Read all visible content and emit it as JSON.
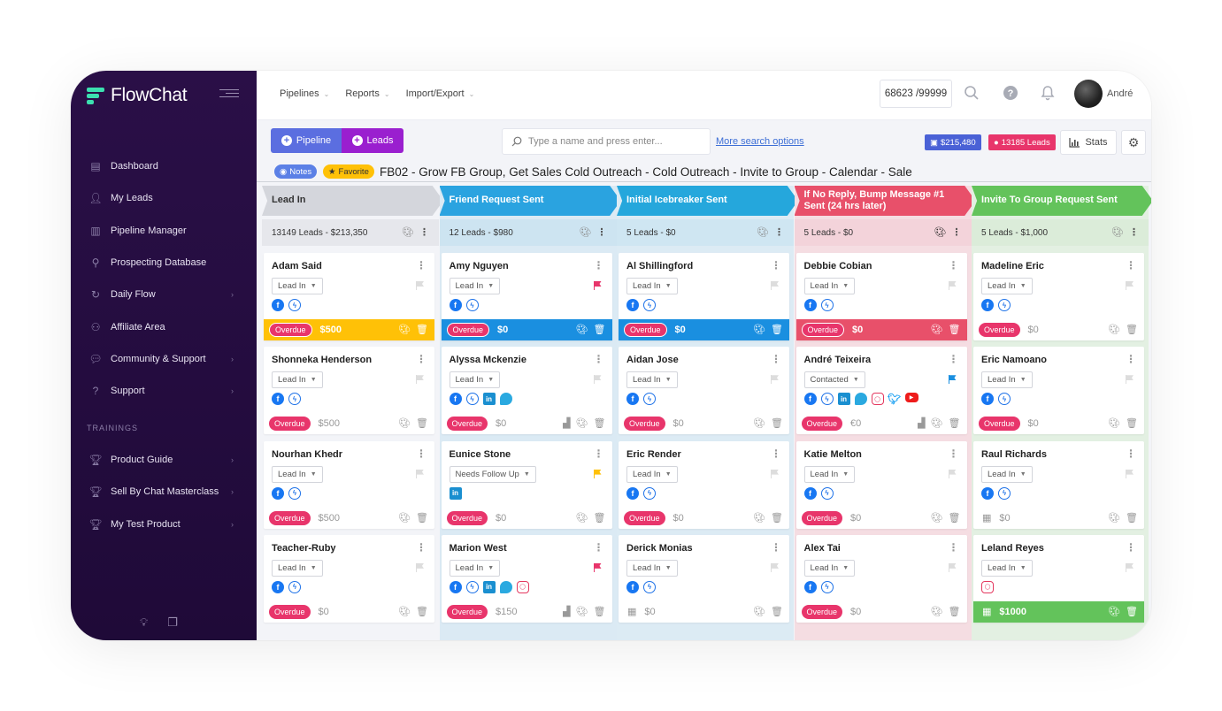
{
  "app": {
    "name": "FlowChat"
  },
  "sidebar": {
    "items": [
      {
        "label": "Dashboard",
        "icon": "dashboard-icon",
        "chev": false
      },
      {
        "label": "My Leads",
        "icon": "users-icon",
        "chev": false
      },
      {
        "label": "Pipeline Manager",
        "icon": "columns-icon",
        "chev": false
      },
      {
        "label": "Prospecting Database",
        "icon": "search-icon",
        "chev": false
      },
      {
        "label": "Daily Flow",
        "icon": "refresh-icon",
        "chev": true
      },
      {
        "label": "Affiliate Area",
        "icon": "network-icon",
        "chev": false
      },
      {
        "label": "Community & Support",
        "icon": "chat-icon",
        "chev": true
      },
      {
        "label": "Support",
        "icon": "help-icon",
        "chev": true
      }
    ],
    "section_label": "TRAININGS",
    "trainings": [
      {
        "label": "Product Guide"
      },
      {
        "label": "Sell By Chat Masterclass"
      },
      {
        "label": "My Test Product"
      }
    ]
  },
  "topbar": {
    "menu": [
      "Pipelines",
      "Reports",
      "Import/Export"
    ],
    "counter": "68623 /99999",
    "user": "André"
  },
  "toolbar": {
    "pipeline_label": "Pipeline",
    "leads_label": "Leads",
    "search_placeholder": "Type a name and press enter...",
    "more_search": "More search options",
    "money_badge": "$215,480",
    "leads_badge": "13185 Leads",
    "stats_label": "Stats"
  },
  "pipeline": {
    "notes_label": "Notes",
    "favorite_label": "Favorite",
    "title": "FB02 - Grow FB Group, Get Sales Cold Outreach - Cold Outreach - Invite to Group - Calendar - Sale"
  },
  "colors": {
    "overdue": "#e8356b",
    "accent": "#9a1fcf",
    "brand": "#3ce0b0"
  },
  "columns": [
    {
      "title": "Lead In",
      "summary": "13149 Leads - $213,350",
      "head_bg": "#d4d6dc",
      "head_fg": "#333333",
      "sub_bg": "#e6e7ec",
      "body_bg": "#f3f4f8",
      "accent": "#ffc107",
      "cards": [
        {
          "name": "Adam Said",
          "status": "Lead In",
          "icons": [
            "fb",
            "ms"
          ],
          "overdue": "Overdue",
          "amount": "$500",
          "flag": "#dddddd",
          "full": true,
          "note": false,
          "cal": false
        },
        {
          "name": "Shonneka Henderson",
          "status": "Lead In",
          "icons": [
            "fb",
            "ms"
          ],
          "overdue": "Overdue",
          "amount": "$500",
          "flag": "#dddddd",
          "full": false,
          "note": false,
          "cal": false
        },
        {
          "name": "Nourhan Khedr",
          "status": "Lead In",
          "icons": [
            "fb",
            "ms"
          ],
          "overdue": "Overdue",
          "amount": "$500",
          "flag": "#dddddd",
          "full": false,
          "note": false,
          "cal": false
        },
        {
          "name": "Teacher-Ruby",
          "status": "Lead In",
          "icons": [
            "fb",
            "ms"
          ],
          "overdue": "Overdue",
          "amount": "$0",
          "flag": "#dddddd",
          "full": false,
          "note": false,
          "cal": false
        }
      ]
    },
    {
      "title": "Friend Request Sent",
      "summary": "12 Leads - $980",
      "head_bg": "#2aa3e0",
      "head_fg": "#ffffff",
      "sub_bg": "#cde4f1",
      "body_bg": "#dbeaf4",
      "accent": "#1a8fe0",
      "cards": [
        {
          "name": "Amy Nguyen",
          "status": "Lead In",
          "icons": [
            "fb",
            "ms"
          ],
          "overdue": "Overdue",
          "amount": "$0",
          "flag": "#e8356b",
          "full": true,
          "note": false,
          "cal": false
        },
        {
          "name": "Alyssa Mckenzie",
          "status": "Lead In",
          "icons": [
            "fb",
            "ms",
            "li",
            "chat"
          ],
          "overdue": "Overdue",
          "amount": "$0",
          "flag": "#dddddd",
          "full": false,
          "note": true,
          "cal": false
        },
        {
          "name": "Eunice Stone",
          "status": "Needs Follow Up",
          "icons": [
            "li"
          ],
          "overdue": "Overdue",
          "amount": "$0",
          "flag": "#ffc107",
          "full": false,
          "note": false,
          "cal": false
        },
        {
          "name": "Marion West",
          "status": "Lead In",
          "icons": [
            "fb",
            "ms",
            "li",
            "chat",
            "ig"
          ],
          "overdue": "Overdue",
          "amount": "$150",
          "flag": "#e8356b",
          "full": false,
          "note": true,
          "cal": false
        }
      ]
    },
    {
      "title": "Initial Icebreaker Sent",
      "summary": "5 Leads - $0",
      "head_bg": "#25a7dc",
      "head_fg": "#ffffff",
      "sub_bg": "#cfe6f2",
      "body_bg": "#dcebf4",
      "accent": "#1a8fe0",
      "cards": [
        {
          "name": "Al Shillingford",
          "status": "Lead In",
          "icons": [
            "fb",
            "ms"
          ],
          "overdue": "Overdue",
          "amount": "$0",
          "flag": "#dddddd",
          "full": true,
          "note": false,
          "cal": false
        },
        {
          "name": "Aidan Jose",
          "status": "Lead In",
          "icons": [
            "fb",
            "ms"
          ],
          "overdue": "Overdue",
          "amount": "$0",
          "flag": "#dddddd",
          "full": false,
          "note": false,
          "cal": false
        },
        {
          "name": "Eric Render",
          "status": "Lead In",
          "icons": [
            "fb",
            "ms"
          ],
          "overdue": "Overdue",
          "amount": "$0",
          "flag": "#dddddd",
          "full": false,
          "note": false,
          "cal": false
        },
        {
          "name": "Derick Monias",
          "status": "Lead In",
          "icons": [
            "fb",
            "ms"
          ],
          "overdue": "",
          "amount": "$0",
          "flag": "#dddddd",
          "full": false,
          "note": false,
          "cal": true
        }
      ]
    },
    {
      "title": "If No Reply, Bump Message #1 Sent (24 hrs later)",
      "summary": "5 Leads - $0",
      "head_bg": "#e8506a",
      "head_fg": "#ffffff",
      "sub_bg": "#f3d3da",
      "body_bg": "#f5dde2",
      "accent": "#e8506a",
      "cards": [
        {
          "name": "Debbie Cobian",
          "status": "Lead In",
          "icons": [
            "fb",
            "ms"
          ],
          "overdue": "Overdue",
          "amount": "$0",
          "flag": "#dddddd",
          "full": true,
          "note": false,
          "cal": false
        },
        {
          "name": "André Teixeira",
          "status": "Contacted",
          "icons": [
            "fb",
            "ms",
            "li",
            "chat",
            "ig",
            "tw",
            "yt"
          ],
          "overdue": "Overdue",
          "amount": "€0",
          "flag": "#1a8fe0",
          "full": false,
          "note": true,
          "cal": false
        },
        {
          "name": "Katie Melton",
          "status": "Lead In",
          "icons": [
            "fb",
            "ms"
          ],
          "overdue": "Overdue",
          "amount": "$0",
          "flag": "#dddddd",
          "full": false,
          "note": false,
          "cal": false
        },
        {
          "name": "Alex Tai",
          "status": "Lead In",
          "icons": [
            "fb",
            "ms"
          ],
          "overdue": "Overdue",
          "amount": "$0",
          "flag": "#dddddd",
          "full": false,
          "note": false,
          "cal": false
        }
      ]
    },
    {
      "title": "Invite To Group Request Sent",
      "summary": "5 Leads - $1,000",
      "head_bg": "#63c35b",
      "head_fg": "#ffffff",
      "sub_bg": "#dbecd9",
      "body_bg": "#e3f0e2",
      "accent": "#63c35b",
      "cards": [
        {
          "name": "Madeline Eric",
          "status": "Lead In",
          "icons": [
            "fb",
            "ms"
          ],
          "overdue": "Overdue",
          "amount": "$0",
          "flag": "#dddddd",
          "full": false,
          "note": false,
          "cal": false
        },
        {
          "name": "Eric Namoano",
          "status": "Lead In",
          "icons": [
            "fb",
            "ms"
          ],
          "overdue": "Overdue",
          "amount": "$0",
          "flag": "#dddddd",
          "full": false,
          "note": false,
          "cal": false
        },
        {
          "name": "Raul Richards",
          "status": "Lead In",
          "icons": [
            "fb",
            "ms"
          ],
          "overdue": "",
          "amount": "$0",
          "flag": "#dddddd",
          "full": false,
          "note": false,
          "cal": true
        },
        {
          "name": "Leland Reyes",
          "status": "Lead In",
          "icons": [
            "ig"
          ],
          "overdue": "",
          "amount": "$1000",
          "flag": "#dddddd",
          "full": true,
          "note": false,
          "cal": true
        }
      ]
    }
  ]
}
